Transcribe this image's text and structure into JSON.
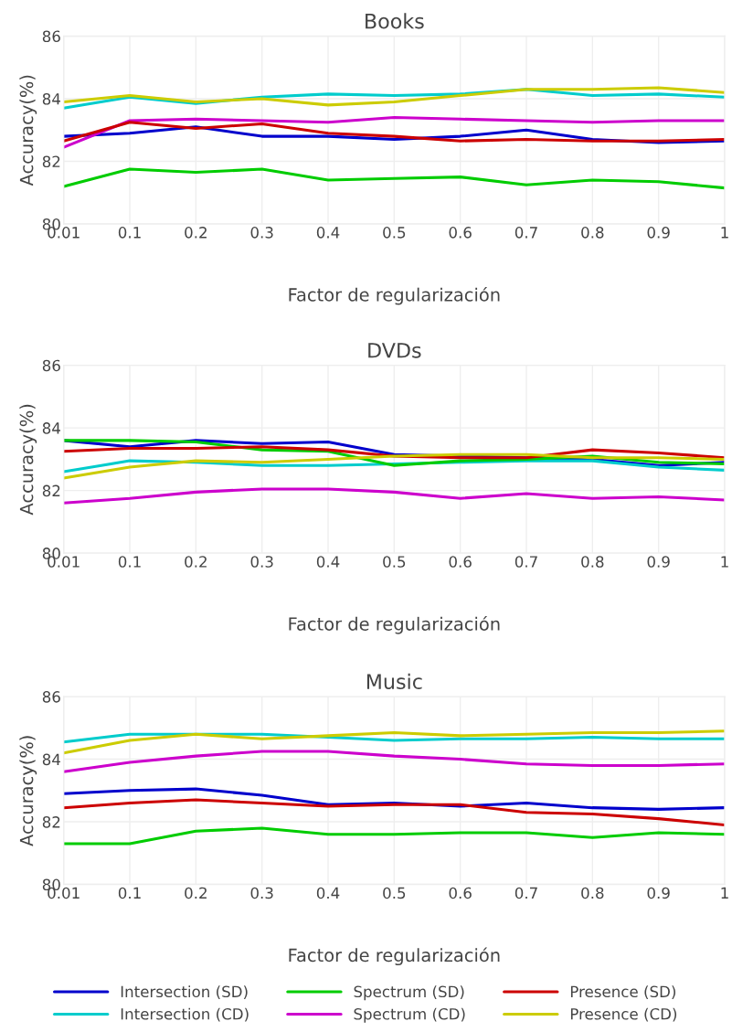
{
  "chart_data": [
    {
      "type": "line",
      "title": "Books",
      "xlabel": "Factor de regularización",
      "ylabel": "Accuracy(%)",
      "categories": [
        "0.01",
        "0.1",
        "0.2",
        "0.3",
        "0.4",
        "0.5",
        "0.6",
        "0.7",
        "0.8",
        "0.9",
        "1"
      ],
      "ylim": [
        80,
        86
      ],
      "yticks": [
        80,
        82,
        84,
        86
      ],
      "grid": true,
      "legend": false,
      "series": [
        {
          "color": "#0000cc",
          "values": [
            82.8,
            82.9,
            83.1,
            82.8,
            82.8,
            82.7,
            82.8,
            83.0,
            82.7,
            82.6,
            82.65
          ]
        },
        {
          "color": "#00cccc",
          "values": [
            83.7,
            84.05,
            83.85,
            84.05,
            84.15,
            84.1,
            84.15,
            84.3,
            84.1,
            84.15,
            84.05
          ]
        },
        {
          "color": "#00cc00",
          "values": [
            81.2,
            81.75,
            81.65,
            81.75,
            81.4,
            81.45,
            81.5,
            81.25,
            81.4,
            81.35,
            81.15
          ]
        },
        {
          "color": "#cc00cc",
          "values": [
            82.45,
            83.3,
            83.35,
            83.3,
            83.25,
            83.4,
            83.35,
            83.3,
            83.25,
            83.3,
            83.3
          ]
        },
        {
          "color": "#cc0000",
          "values": [
            82.65,
            83.25,
            83.05,
            83.2,
            82.9,
            82.8,
            82.65,
            82.7,
            82.65,
            82.65,
            82.7
          ]
        },
        {
          "color": "#cccc00",
          "values": [
            83.9,
            84.1,
            83.9,
            84.0,
            83.8,
            83.9,
            84.1,
            84.3,
            84.3,
            84.35,
            84.2
          ]
        }
      ]
    },
    {
      "type": "line",
      "title": "DVDs",
      "xlabel": "Factor de regularización",
      "ylabel": "Accuracy(%)",
      "categories": [
        "0.01",
        "0.1",
        "0.2",
        "0.3",
        "0.4",
        "0.5",
        "0.6",
        "0.7",
        "0.8",
        "0.9",
        "1"
      ],
      "ylim": [
        80,
        86
      ],
      "yticks": [
        80,
        82,
        84,
        86
      ],
      "grid": true,
      "legend": false,
      "series": [
        {
          "color": "#0000cc",
          "values": [
            83.6,
            83.4,
            83.6,
            83.5,
            83.55,
            83.15,
            83.1,
            83.05,
            83.0,
            82.8,
            82.9
          ]
        },
        {
          "color": "#00cccc",
          "values": [
            82.6,
            82.95,
            82.9,
            82.8,
            82.8,
            82.85,
            82.9,
            82.95,
            82.95,
            82.75,
            82.65
          ]
        },
        {
          "color": "#00cc00",
          "values": [
            83.6,
            83.6,
            83.55,
            83.3,
            83.25,
            82.8,
            82.95,
            83.0,
            83.1,
            82.9,
            82.85
          ]
        },
        {
          "color": "#cc00cc",
          "values": [
            81.6,
            81.75,
            81.95,
            82.05,
            82.05,
            81.95,
            81.75,
            81.9,
            81.75,
            81.8,
            81.7
          ]
        },
        {
          "color": "#cc0000",
          "values": [
            83.25,
            83.35,
            83.35,
            83.4,
            83.3,
            83.1,
            83.05,
            83.05,
            83.3,
            83.2,
            83.05
          ]
        },
        {
          "color": "#cccc00",
          "values": [
            82.4,
            82.75,
            82.95,
            82.9,
            83.0,
            83.1,
            83.15,
            83.15,
            83.05,
            83.05,
            83.0
          ]
        }
      ]
    },
    {
      "type": "line",
      "title": "Music",
      "xlabel": "Factor de regularización",
      "ylabel": "Accuracy(%)",
      "categories": [
        "0.01",
        "0.1",
        "0.2",
        "0.3",
        "0.4",
        "0.5",
        "0.6",
        "0.7",
        "0.8",
        "0.9",
        "1"
      ],
      "ylim": [
        80,
        86
      ],
      "yticks": [
        80,
        82,
        84,
        86
      ],
      "grid": true,
      "legend": "bottom",
      "series": [
        {
          "name": "Intersection (SD)",
          "color": "#0000cc",
          "values": [
            82.9,
            83.0,
            83.05,
            82.85,
            82.55,
            82.6,
            82.5,
            82.6,
            82.45,
            82.4,
            82.45
          ]
        },
        {
          "name": "Intersection (CD)",
          "color": "#00cccc",
          "values": [
            84.55,
            84.8,
            84.8,
            84.8,
            84.7,
            84.6,
            84.65,
            84.65,
            84.7,
            84.65,
            84.65
          ]
        },
        {
          "name": "Spectrum (SD)",
          "color": "#00cc00",
          "values": [
            81.3,
            81.3,
            81.7,
            81.8,
            81.6,
            81.6,
            81.65,
            81.65,
            81.5,
            81.65,
            81.6
          ]
        },
        {
          "name": "Spectrum (CD)",
          "color": "#cc00cc",
          "values": [
            83.6,
            83.9,
            84.1,
            84.25,
            84.25,
            84.1,
            84.0,
            83.85,
            83.8,
            83.8,
            83.85
          ]
        },
        {
          "name": "Presence (SD)",
          "color": "#cc0000",
          "values": [
            82.45,
            82.6,
            82.7,
            82.6,
            82.5,
            82.55,
            82.55,
            82.3,
            82.25,
            82.1,
            81.9
          ]
        },
        {
          "name": "Presence (CD)",
          "color": "#cccc00",
          "values": [
            84.2,
            84.6,
            84.8,
            84.65,
            84.75,
            84.85,
            84.75,
            84.8,
            84.85,
            84.85,
            84.9
          ]
        }
      ]
    }
  ]
}
